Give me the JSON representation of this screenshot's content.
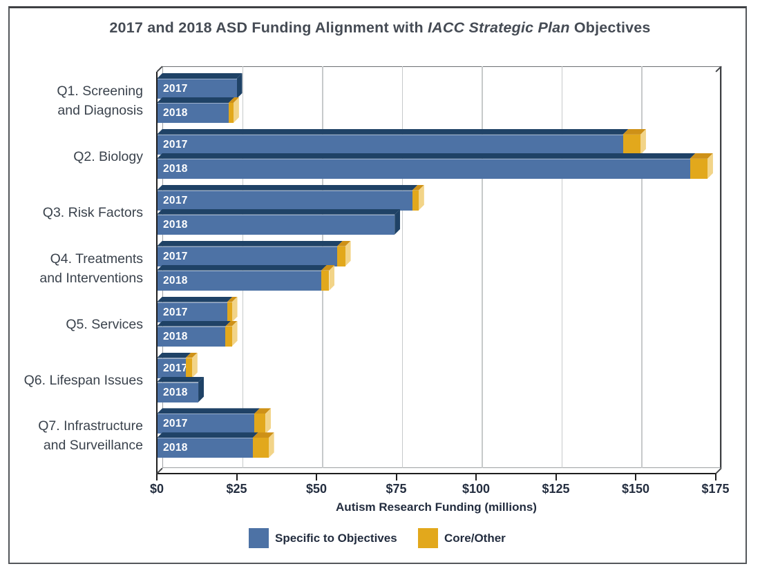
{
  "title": {
    "prefix": "2017 and 2018 ASD Funding Alignment with ",
    "italic": "IACC Strategic Plan",
    "suffix": " Objectives"
  },
  "chart_data": {
    "type": "bar",
    "orientation": "horizontal",
    "style": "3d",
    "title": "2017 and 2018 ASD Funding Alignment with IACC Strategic Plan Objectives",
    "xlabel": "Autism Research Funding (millions)",
    "value_unit": "USD millions",
    "xlim": [
      0,
      175
    ],
    "x_tick_values": [
      0,
      25,
      50,
      75,
      100,
      125,
      150,
      175
    ],
    "x_tick_labels": [
      "$0",
      "$25",
      "$50",
      "$75",
      "$100",
      "$125",
      "$150",
      "$175"
    ],
    "grid": true,
    "legend_position": "bottom",
    "legend": [
      {
        "key": "specific",
        "label": "Specific to Objectives",
        "color": "#4D72A5"
      },
      {
        "key": "core_other",
        "label": "Core/Other",
        "color": "#E2A81C"
      }
    ],
    "groups": [
      {
        "id": "q1",
        "label_lines": [
          "Q1. Screening",
          "and Diagnosis"
        ],
        "bars": [
          {
            "year": "2017",
            "specific": 25,
            "core_other": 0
          },
          {
            "year": "2018",
            "specific": 22.5,
            "core_other": 1.5
          }
        ]
      },
      {
        "id": "q2",
        "label_lines": [
          "Q2. Biology"
        ],
        "bars": [
          {
            "year": "2017",
            "specific": 146,
            "core_other": 5.5
          },
          {
            "year": "2018",
            "specific": 167,
            "core_other": 5.5
          }
        ]
      },
      {
        "id": "q3",
        "label_lines": [
          "Q3. Risk Factors"
        ],
        "bars": [
          {
            "year": "2017",
            "specific": 80,
            "core_other": 2
          },
          {
            "year": "2018",
            "specific": 74.5,
            "core_other": 0
          }
        ]
      },
      {
        "id": "q4",
        "label_lines": [
          "Q4. Treatments",
          "and Interventions"
        ],
        "bars": [
          {
            "year": "2017",
            "specific": 56.5,
            "core_other": 2.5
          },
          {
            "year": "2018",
            "specific": 51.5,
            "core_other": 2.5
          }
        ]
      },
      {
        "id": "q5",
        "label_lines": [
          "Q5. Services"
        ],
        "bars": [
          {
            "year": "2017",
            "specific": 22,
            "core_other": 1.5
          },
          {
            "year": "2018",
            "specific": 21.5,
            "core_other": 2
          }
        ]
      },
      {
        "id": "q6",
        "label_lines": [
          "Q6. Lifespan Issues"
        ],
        "bars": [
          {
            "year": "2017",
            "specific": 9,
            "core_other": 2
          },
          {
            "year": "2018",
            "specific": 13,
            "core_other": 0
          }
        ]
      },
      {
        "id": "q7",
        "label_lines": [
          "Q7. Infrastructure",
          "and Surveillance"
        ],
        "bars": [
          {
            "year": "2017",
            "specific": 30.5,
            "core_other": 3.5
          },
          {
            "year": "2018",
            "specific": 30,
            "core_other": 5
          }
        ]
      }
    ]
  },
  "colors": {
    "bar_blue_front": "#4D72A5",
    "bar_blue_top": "#1F4266",
    "bar_blue_side": "#1F4266",
    "bar_gold_front": "#E2A81C",
    "bar_gold_top": "#CE9117",
    "bar_gold_side": "#F2D488",
    "grid_line": "#c6c9ca",
    "wall_edge": "#9ca0a2",
    "wall_edge_dark": "#3f4144",
    "axis_line": "#1d1d1d",
    "title_text": "#454b54",
    "label_text": "#3a424c",
    "tick_text": "#232d3f"
  }
}
